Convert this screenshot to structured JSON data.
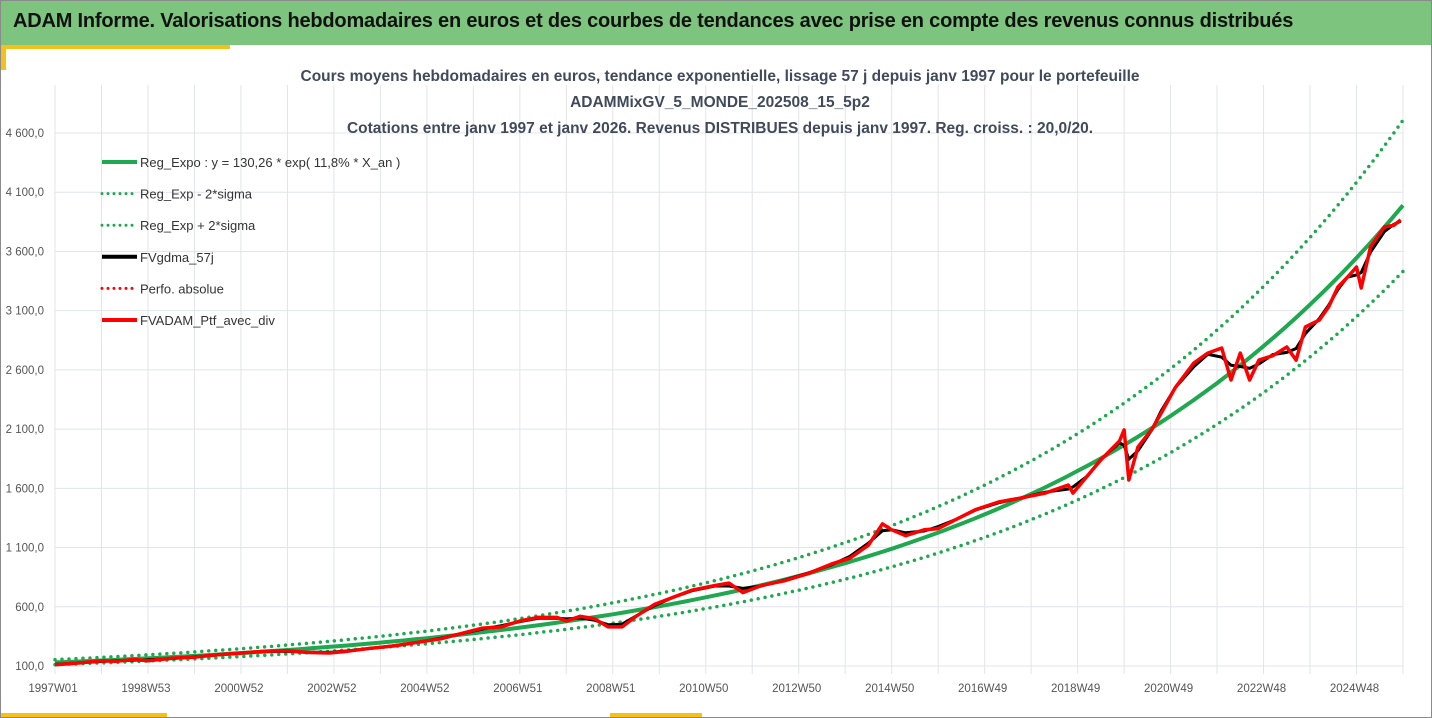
{
  "header": {
    "title": "ADAM Informe. Valorisations hebdomadaires en euros et des courbes de tendances avec prise en compte des revenus connus distribués"
  },
  "chart_data": {
    "type": "line",
    "title": [
      "Cours moyens hebdomadaires  en euros, tendance exponentielle, lissage 57 j depuis janv 1997 pour le portefeuille",
      "ADAMMixGV_5_MONDE_202508_15_5p2",
      "Cotations entre janv 1997 et janv 2026. Revenus DISTRIBUES depuis janv 1997. Reg. croiss. : 20,0/20."
    ],
    "xlabel": "",
    "ylabel": "",
    "xlim": [
      1997.0,
      2026.0
    ],
    "ylim": [
      100,
      4600
    ],
    "y_ticks": [
      "100,0",
      "600,0",
      "1 100,0",
      "1 600,0",
      "2 100,0",
      "2 600,0",
      "3 100,0",
      "3 600,0",
      "4 100,0",
      "4 600,0"
    ],
    "x_ticks": [
      "1997W01",
      "1998W53",
      "2000W52",
      "2002W52",
      "2004W52",
      "2006W51",
      "2008W51",
      "2010W50",
      "2012W50",
      "2014W50",
      "2016W49",
      "2018W49",
      "2020W49",
      "2022W48",
      "2024W48"
    ],
    "grid": true,
    "legend_position": "top-left",
    "regression": {
      "a": 130.26,
      "rate": 0.118,
      "lower_factor": 0.86,
      "upper_factor": 1.18
    },
    "series": [
      {
        "name": "Reg_Expo : y = 130,26 * exp( 11,8% *  X_an )",
        "color": "#1fa84f",
        "style": "solid"
      },
      {
        "name": "Reg_Exp - 2*sigma",
        "color": "#1fa84f",
        "style": "dotted"
      },
      {
        "name": "Reg_Exp + 2*sigma",
        "color": "#1fa84f",
        "style": "dotted"
      },
      {
        "name": "FVgdma_57j",
        "color": "#000000",
        "style": "solid"
      },
      {
        "name": "Perfo. absolue",
        "color": "#ff0000",
        "style": "dotted"
      },
      {
        "name": "FVADAM_Ptf_avec_div",
        "color": "#ff0000",
        "style": "solid"
      }
    ],
    "portfolio": [
      [
        1997.0,
        110
      ],
      [
        1997.5,
        125
      ],
      [
        1998.0,
        145
      ],
      [
        1998.3,
        140
      ],
      [
        1998.7,
        155
      ],
      [
        1999.0,
        145
      ],
      [
        1999.5,
        165
      ],
      [
        2000.0,
        175
      ],
      [
        2000.5,
        195
      ],
      [
        2001.0,
        210
      ],
      [
        2001.5,
        225
      ],
      [
        2002.0,
        230
      ],
      [
        2002.4,
        215
      ],
      [
        2002.9,
        210
      ],
      [
        2003.3,
        225
      ],
      [
        2003.8,
        250
      ],
      [
        2004.3,
        270
      ],
      [
        2004.8,
        300
      ],
      [
        2005.3,
        330
      ],
      [
        2005.8,
        380
      ],
      [
        2006.2,
        420
      ],
      [
        2006.6,
        430
      ],
      [
        2007.0,
        480
      ],
      [
        2007.4,
        510
      ],
      [
        2007.8,
        510
      ],
      [
        2008.0,
        480
      ],
      [
        2008.3,
        520
      ],
      [
        2008.6,
        500
      ],
      [
        2008.9,
        430
      ],
      [
        2009.2,
        430
      ],
      [
        2009.5,
        520
      ],
      [
        2009.9,
        620
      ],
      [
        2010.3,
        680
      ],
      [
        2010.7,
        740
      ],
      [
        2011.2,
        780
      ],
      [
        2011.5,
        800
      ],
      [
        2011.8,
        720
      ],
      [
        2012.2,
        780
      ],
      [
        2012.7,
        820
      ],
      [
        2013.2,
        880
      ],
      [
        2013.7,
        960
      ],
      [
        2014.1,
        1010
      ],
      [
        2014.5,
        1120
      ],
      [
        2014.8,
        1300
      ],
      [
        2015.0,
        1250
      ],
      [
        2015.3,
        1200
      ],
      [
        2015.7,
        1250
      ],
      [
        2016.0,
        1260
      ],
      [
        2016.4,
        1340
      ],
      [
        2016.8,
        1420
      ],
      [
        2017.3,
        1485
      ],
      [
        2017.8,
        1520
      ],
      [
        2018.3,
        1560
      ],
      [
        2018.8,
        1628
      ],
      [
        2018.9,
        1560
      ],
      [
        2019.2,
        1700
      ],
      [
        2019.5,
        1840
      ],
      [
        2019.9,
        2000
      ],
      [
        2020.0,
        2093
      ],
      [
        2020.1,
        1670
      ],
      [
        2020.3,
        1950
      ],
      [
        2020.6,
        2100
      ],
      [
        2020.8,
        2236
      ],
      [
        2021.1,
        2450
      ],
      [
        2021.5,
        2658
      ],
      [
        2021.8,
        2742
      ],
      [
        2022.1,
        2785
      ],
      [
        2022.3,
        2515
      ],
      [
        2022.5,
        2742
      ],
      [
        2022.7,
        2515
      ],
      [
        2022.9,
        2683
      ],
      [
        2023.2,
        2720
      ],
      [
        2023.5,
        2793
      ],
      [
        2023.7,
        2683
      ],
      [
        2023.9,
        2962
      ],
      [
        2024.2,
        3020
      ],
      [
        2024.4,
        3131
      ],
      [
        2024.6,
        3300
      ],
      [
        2024.8,
        3380
      ],
      [
        2025.0,
        3469
      ],
      [
        2025.1,
        3291
      ],
      [
        2025.3,
        3638
      ],
      [
        2025.6,
        3807
      ],
      [
        2025.8,
        3820
      ],
      [
        2025.95,
        3866
      ]
    ]
  }
}
